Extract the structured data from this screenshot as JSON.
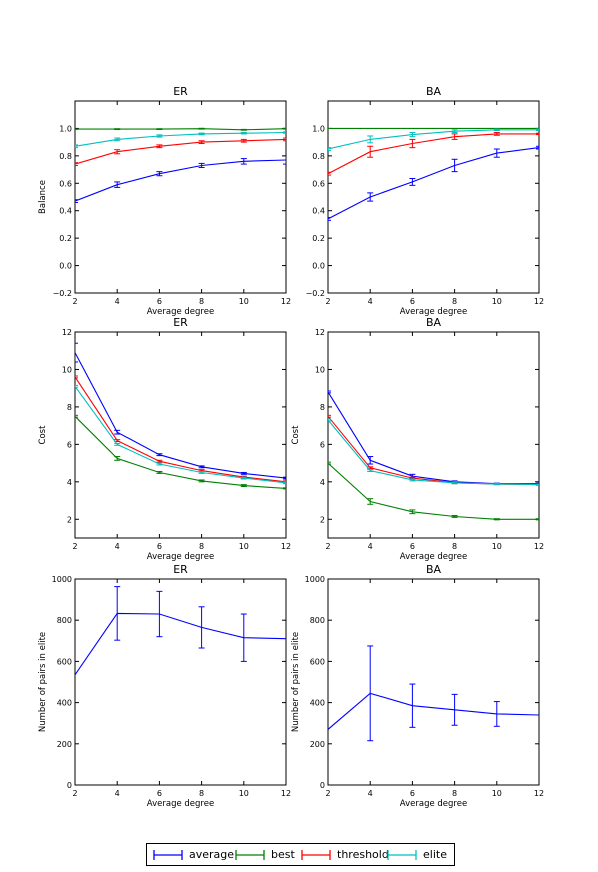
{
  "chart_data": [
    {
      "type": "line",
      "title": "ER",
      "xlabel": "Average degree",
      "ylabel": "Balance",
      "xlim": [
        2,
        12
      ],
      "ylim": [
        -0.2,
        1.2
      ],
      "xticks": [
        "2",
        "4",
        "6",
        "8",
        "10",
        "12"
      ],
      "yticks": [
        "−0.2",
        "0.0",
        "0.2",
        "0.4",
        "0.6",
        "0.8",
        "1.0"
      ],
      "ytick_values": [
        -0.2,
        0.0,
        0.2,
        0.4,
        0.6,
        0.8,
        1.0
      ],
      "x": [
        2,
        4,
        6,
        8,
        10,
        12
      ],
      "series": [
        {
          "name": "average",
          "values": [
            0.47,
            0.59,
            0.67,
            0.73,
            0.76,
            0.77
          ],
          "errors": [
            0.01,
            0.02,
            0.015,
            0.015,
            0.02,
            0.03
          ]
        },
        {
          "name": "best",
          "values": [
            0.995,
            0.995,
            0.995,
            0.998,
            0.99,
            0.998
          ],
          "errors": [
            0.002,
            0.003,
            0.003,
            0.003,
            0.003,
            0.003
          ]
        },
        {
          "name": "threshold",
          "values": [
            0.74,
            0.83,
            0.87,
            0.9,
            0.91,
            0.92
          ],
          "errors": [
            0.01,
            0.015,
            0.01,
            0.01,
            0.01,
            0.01
          ]
        },
        {
          "name": "elite",
          "values": [
            0.87,
            0.92,
            0.945,
            0.96,
            0.965,
            0.97
          ],
          "errors": [
            0.01,
            0.01,
            0.008,
            0.006,
            0.005,
            0.005
          ]
        }
      ]
    },
    {
      "type": "line",
      "title": "BA",
      "xlabel": "Average degree",
      "ylabel": "",
      "xlim": [
        2,
        12
      ],
      "ylim": [
        -0.2,
        1.2
      ],
      "xticks": [
        "2",
        "4",
        "6",
        "8",
        "10",
        "12"
      ],
      "yticks": [
        "−0.2",
        "0.0",
        "0.2",
        "0.4",
        "0.6",
        "0.8",
        "1.0"
      ],
      "ytick_values": [
        -0.2,
        0.0,
        0.2,
        0.4,
        0.6,
        0.8,
        1.0
      ],
      "x": [
        2,
        4,
        6,
        8,
        10,
        12
      ],
      "series": [
        {
          "name": "average",
          "values": [
            0.34,
            0.5,
            0.61,
            0.73,
            0.82,
            0.86
          ],
          "errors": [
            0.01,
            0.03,
            0.025,
            0.045,
            0.03,
            0.01
          ]
        },
        {
          "name": "best",
          "values": [
            1.0,
            1.0,
            1.0,
            1.0,
            1.0,
            1.0
          ],
          "errors": [
            0.0,
            0.0,
            0.0,
            0.0,
            0.0,
            0.0
          ]
        },
        {
          "name": "threshold",
          "values": [
            0.67,
            0.83,
            0.89,
            0.94,
            0.96,
            0.96
          ],
          "errors": [
            0.01,
            0.04,
            0.03,
            0.02,
            0.01,
            0.005
          ]
        },
        {
          "name": "elite",
          "values": [
            0.85,
            0.92,
            0.955,
            0.98,
            0.99,
            0.99
          ],
          "errors": [
            0.01,
            0.025,
            0.015,
            0.01,
            0.005,
            0.005
          ]
        }
      ]
    },
    {
      "type": "line",
      "title": "ER",
      "xlabel": "Average degree",
      "ylabel": "Cost",
      "xlim": [
        2,
        12
      ],
      "ylim": [
        1,
        12
      ],
      "xticks": [
        "2",
        "4",
        "6",
        "8",
        "10",
        "12"
      ],
      "yticks": [
        "2",
        "4",
        "6",
        "8",
        "10",
        "12"
      ],
      "ytick_values": [
        2,
        4,
        6,
        8,
        10,
        12
      ],
      "x": [
        2,
        4,
        6,
        8,
        10,
        12
      ],
      "series": [
        {
          "name": "average",
          "values": [
            10.9,
            6.65,
            5.45,
            4.8,
            4.45,
            4.2
          ],
          "errors": [
            0.5,
            0.1,
            0.05,
            0.05,
            0.05,
            0.05
          ]
        },
        {
          "name": "best",
          "values": [
            7.5,
            5.25,
            4.5,
            4.05,
            3.8,
            3.65
          ],
          "errors": [
            0.05,
            0.1,
            0.05,
            0.05,
            0.05,
            0.03
          ]
        },
        {
          "name": "threshold",
          "values": [
            9.6,
            6.2,
            5.1,
            4.6,
            4.25,
            4.0
          ],
          "errors": [
            0.05,
            0.05,
            0.05,
            0.05,
            0.05,
            0.05
          ]
        },
        {
          "name": "elite",
          "values": [
            9.1,
            6.0,
            4.95,
            4.5,
            4.2,
            3.95
          ],
          "errors": [
            0.05,
            0.05,
            0.05,
            0.05,
            0.05,
            0.05
          ]
        }
      ]
    },
    {
      "type": "line",
      "title": "BA",
      "xlabel": "Average degree",
      "ylabel": "Cost",
      "xlim": [
        2,
        12
      ],
      "ylim": [
        1,
        12
      ],
      "xticks": [
        "2",
        "4",
        "6",
        "8",
        "10",
        "12"
      ],
      "yticks": [
        "2",
        "4",
        "6",
        "8",
        "10",
        "12"
      ],
      "ytick_values": [
        2,
        4,
        6,
        8,
        10,
        12
      ],
      "x": [
        2,
        4,
        6,
        8,
        10,
        12
      ],
      "series": [
        {
          "name": "average",
          "values": [
            8.8,
            5.15,
            4.3,
            4.0,
            3.9,
            3.9
          ],
          "errors": [
            0.05,
            0.2,
            0.1,
            0.05,
            0.03,
            0.03
          ]
        },
        {
          "name": "best",
          "values": [
            5.0,
            2.95,
            2.4,
            2.15,
            2.0,
            2.0
          ],
          "errors": [
            0.05,
            0.15,
            0.1,
            0.05,
            0.03,
            0.03
          ]
        },
        {
          "name": "threshold",
          "values": [
            7.5,
            4.75,
            4.2,
            3.95,
            3.88,
            3.85
          ],
          "errors": [
            0.05,
            0.05,
            0.05,
            0.05,
            0.03,
            0.03
          ]
        },
        {
          "name": "elite",
          "values": [
            7.3,
            4.6,
            4.1,
            3.95,
            3.88,
            3.85
          ],
          "errors": [
            0.05,
            0.05,
            0.05,
            0.05,
            0.03,
            0.03
          ]
        }
      ]
    },
    {
      "type": "line",
      "title": "ER",
      "xlabel": "Average degree",
      "ylabel": "Number of pairs in elite",
      "xlim": [
        2,
        12
      ],
      "ylim": [
        0,
        1000
      ],
      "xticks": [
        "2",
        "4",
        "6",
        "8",
        "10",
        "12"
      ],
      "yticks": [
        "0",
        "200",
        "400",
        "600",
        "800",
        "1000"
      ],
      "ytick_values": [
        0,
        200,
        400,
        600,
        800,
        1000
      ],
      "x": [
        2,
        4,
        6,
        8,
        10,
        12
      ],
      "series": [
        {
          "name": "average",
          "values": [
            535,
            833,
            830,
            765,
            715,
            710
          ],
          "errors": [
            0,
            130,
            110,
            100,
            115,
            0
          ]
        }
      ]
    },
    {
      "type": "line",
      "title": "BA",
      "xlabel": "Average degree",
      "ylabel": "Number of pairs in elite",
      "xlim": [
        2,
        12
      ],
      "ylim": [
        0,
        1000
      ],
      "xticks": [
        "2",
        "4",
        "6",
        "8",
        "10",
        "12"
      ],
      "yticks": [
        "0",
        "200",
        "400",
        "600",
        "800",
        "1000"
      ],
      "ytick_values": [
        0,
        200,
        400,
        600,
        800,
        1000
      ],
      "x": [
        2,
        4,
        6,
        8,
        10,
        12
      ],
      "series": [
        {
          "name": "average",
          "values": [
            270,
            445,
            385,
            365,
            345,
            340
          ],
          "errors": [
            0,
            230,
            105,
            75,
            60,
            0
          ]
        }
      ]
    }
  ],
  "legend": {
    "items": [
      {
        "label": "average",
        "color": "#0000ff"
      },
      {
        "label": "best",
        "color": "#008000"
      },
      {
        "label": "threshold",
        "color": "#ff0000"
      },
      {
        "label": "elite",
        "color": "#00bfbf"
      }
    ]
  },
  "colors": {
    "average": "#0000ff",
    "best": "#008000",
    "threshold": "#ff0000",
    "elite": "#00bfbf"
  }
}
